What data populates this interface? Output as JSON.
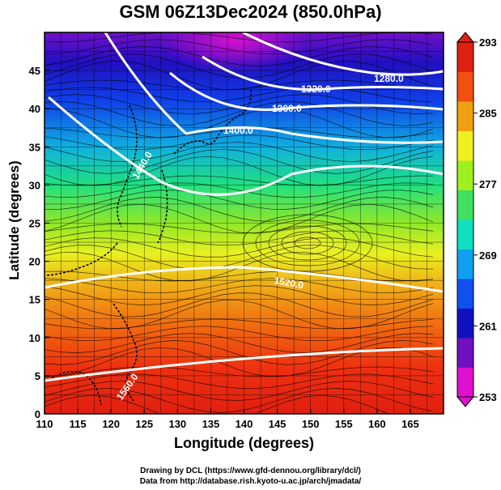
{
  "title": "GSM 06Z13Dec2024 (850.0hPa)",
  "x_axis": {
    "label": "Longitude (degrees)",
    "min": 110,
    "max": 170,
    "ticks": [
      "110",
      "115",
      "120",
      "125",
      "130",
      "135",
      "140",
      "145",
      "150",
      "155",
      "160",
      "165"
    ]
  },
  "y_axis": {
    "label": "Latitude  (degrees)",
    "min": 0,
    "max": 50,
    "ticks": [
      "0",
      "5",
      "10",
      "15",
      "20",
      "25",
      "30",
      "35",
      "40",
      "45"
    ]
  },
  "colorbar": {
    "min": 253,
    "max": 293,
    "ticks": [
      "253",
      "261",
      "269",
      "277",
      "285",
      "293"
    ],
    "colors": [
      "#e010d0",
      "#7010c0",
      "#1010c0",
      "#1050f0",
      "#10a0f0",
      "#10e0c0",
      "#40e060",
      "#a0f020",
      "#f0f020",
      "#f0a010",
      "#f05010",
      "#e02010"
    ]
  },
  "contours": [
    {
      "label": "1280.0"
    },
    {
      "label": "1320.0"
    },
    {
      "label": "1360.0"
    },
    {
      "label": "1400.0"
    },
    {
      "label": "1440.0"
    },
    {
      "label": "1520.0"
    },
    {
      "label": "1560.0"
    }
  ],
  "credits": {
    "line1": "Drawing by DCL (https://www.gfd-dennou.org/library/dcl/)",
    "line2": "Data from http://database.rish.kyoto-u.ac.jp/arch/jmadata/"
  }
}
